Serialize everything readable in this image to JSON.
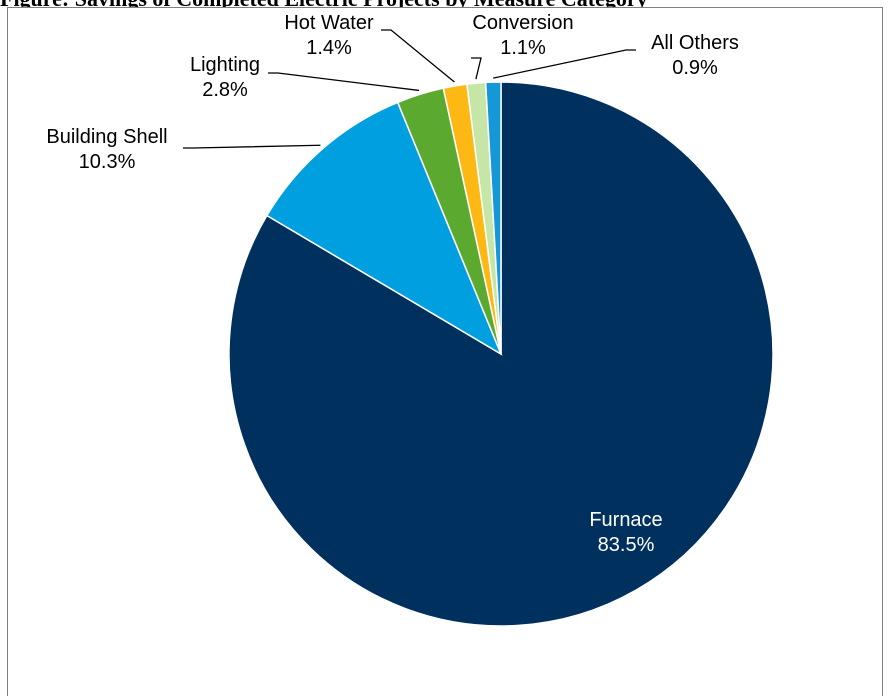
{
  "page": {
    "title_fragment": "Figure: Savings of Completed Electric Projects by Measure Category"
  },
  "chart_data": {
    "type": "pie",
    "title": "",
    "unit": "%",
    "start_angle_deg": 0,
    "direction": "clockwise",
    "slices": [
      {
        "label": "Furnace",
        "value": 83.5,
        "value_label": "83.5%",
        "color": "#00305e"
      },
      {
        "label": "Building Shell",
        "value": 10.3,
        "value_label": "10.3%",
        "color": "#009fdf"
      },
      {
        "label": "Lighting",
        "value": 2.8,
        "value_label": "2.8%",
        "color": "#5ba92f"
      },
      {
        "label": "Hot Water",
        "value": 1.4,
        "value_label": "1.4%",
        "color": "#fdb813"
      },
      {
        "label": "Conversion",
        "value": 1.1,
        "value_label": "1.1%",
        "color": "#c5e6a6"
      },
      {
        "label": "All Others",
        "value": 0.9,
        "value_label": "0.9%",
        "color": "#1598d8"
      }
    ]
  }
}
